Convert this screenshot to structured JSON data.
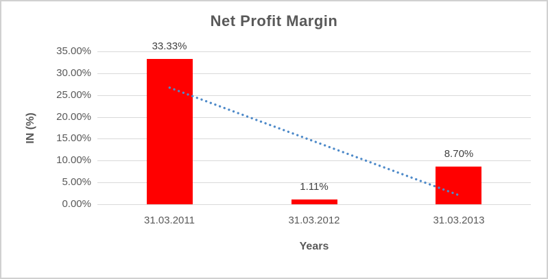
{
  "chart_data": {
    "type": "bar",
    "title": "Net Profit Margin",
    "xlabel": "Years",
    "ylabel": "IN (%)",
    "categories": [
      "31.03.2011",
      "31.03.2012",
      "31.03.2013"
    ],
    "values": [
      33.33,
      1.11,
      8.7
    ],
    "data_labels": [
      "33.33%",
      "1.11%",
      "8.70%"
    ],
    "y_ticks": [
      "35.00%",
      "30.00%",
      "25.00%",
      "20.00%",
      "15.00%",
      "10.00%",
      "5.00%",
      "0.00%"
    ],
    "ylim": [
      0,
      35
    ],
    "grid": true,
    "legend": "none",
    "bar_color": "#ff0000",
    "trendline": {
      "type": "linear",
      "style": "dotted",
      "color": "#4e8ac9",
      "start_value": 26.7,
      "end_value": 2.1
    },
    "colors": {
      "title_text": "#595959",
      "axis_text": "#595959",
      "data_label_text": "#3f3f3f",
      "gridline": "#d9d9d9",
      "frame_border": "#d0d0d0"
    }
  }
}
